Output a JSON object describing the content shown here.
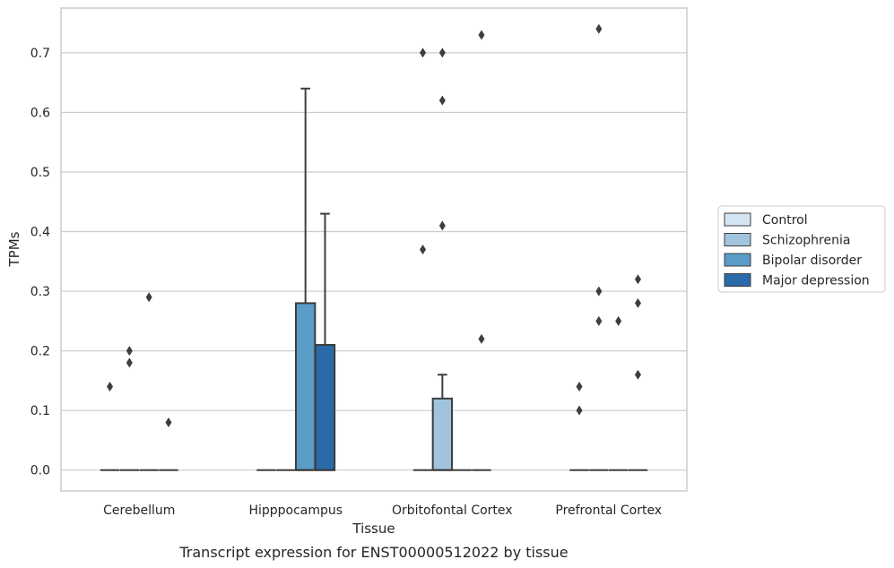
{
  "caption": "Transcript expression for ENST00000512022 by tissue",
  "chart_data": {
    "type": "box",
    "xlabel": "Tissue",
    "ylabel": "TPMs",
    "ylim": [
      -0.035,
      0.775
    ],
    "yticks": [
      0.0,
      0.1,
      0.2,
      0.3,
      0.4,
      0.5,
      0.6,
      0.7
    ],
    "categories": [
      "Cerebellum",
      "Hipppocampus",
      "Orbitofontal Cortex",
      "Prefrontal Cortex"
    ],
    "grid": "horizontal",
    "legend_position": "right",
    "series": [
      {
        "name": "Control",
        "color": "#d3e4f3",
        "boxes": [
          {
            "q1": 0,
            "median": 0,
            "q3": 0,
            "whisker_low": 0,
            "whisker_high": 0,
            "outliers": [
              0.14
            ]
          },
          {
            "q1": 0,
            "median": 0,
            "q3": 0,
            "whisker_low": 0,
            "whisker_high": 0,
            "outliers": []
          },
          {
            "q1": 0,
            "median": 0,
            "q3": 0,
            "whisker_low": 0,
            "whisker_high": 0,
            "outliers": [
              0.37,
              0.7
            ]
          },
          {
            "q1": 0,
            "median": 0,
            "q3": 0,
            "whisker_low": 0,
            "whisker_high": 0,
            "outliers": [
              0.1,
              0.14
            ]
          }
        ]
      },
      {
        "name": "Schizophrenia",
        "color": "#a0c4de",
        "boxes": [
          {
            "q1": 0,
            "median": 0,
            "q3": 0,
            "whisker_low": 0,
            "whisker_high": 0,
            "outliers": [
              0.18,
              0.2
            ]
          },
          {
            "q1": 0,
            "median": 0,
            "q3": 0,
            "whisker_low": 0,
            "whisker_high": 0,
            "outliers": []
          },
          {
            "q1": 0,
            "median": 0,
            "q3": 0.12,
            "whisker_low": 0,
            "whisker_high": 0.16,
            "outliers": [
              0.41,
              0.62,
              0.7
            ]
          },
          {
            "q1": 0,
            "median": 0,
            "q3": 0,
            "whisker_low": 0,
            "whisker_high": 0,
            "outliers": [
              0.25,
              0.3,
              0.74
            ]
          }
        ]
      },
      {
        "name": "Bipolar disorder",
        "color": "#5a9bc8",
        "boxes": [
          {
            "q1": 0,
            "median": 0,
            "q3": 0,
            "whisker_low": 0,
            "whisker_high": 0,
            "outliers": [
              0.29
            ]
          },
          {
            "q1": 0,
            "median": 0,
            "q3": 0.28,
            "whisker_low": 0,
            "whisker_high": 0.64,
            "outliers": []
          },
          {
            "q1": 0,
            "median": 0,
            "q3": 0,
            "whisker_low": 0,
            "whisker_high": 0,
            "outliers": []
          },
          {
            "q1": 0,
            "median": 0,
            "q3": 0,
            "whisker_low": 0,
            "whisker_high": 0,
            "outliers": [
              0.25
            ]
          }
        ]
      },
      {
        "name": "Major depression",
        "color": "#2a6aa8",
        "boxes": [
          {
            "q1": 0,
            "median": 0,
            "q3": 0,
            "whisker_low": 0,
            "whisker_high": 0,
            "outliers": [
              0.08
            ]
          },
          {
            "q1": 0,
            "median": 0,
            "q3": 0.21,
            "whisker_low": 0,
            "whisker_high": 0.43,
            "outliers": []
          },
          {
            "q1": 0,
            "median": 0,
            "q3": 0,
            "whisker_low": 0,
            "whisker_high": 0,
            "outliers": [
              0.22,
              0.73
            ]
          },
          {
            "q1": 0,
            "median": 0,
            "q3": 0,
            "whisker_low": 0,
            "whisker_high": 0,
            "outliers": [
              0.16,
              0.28,
              0.32
            ]
          }
        ]
      }
    ]
  }
}
